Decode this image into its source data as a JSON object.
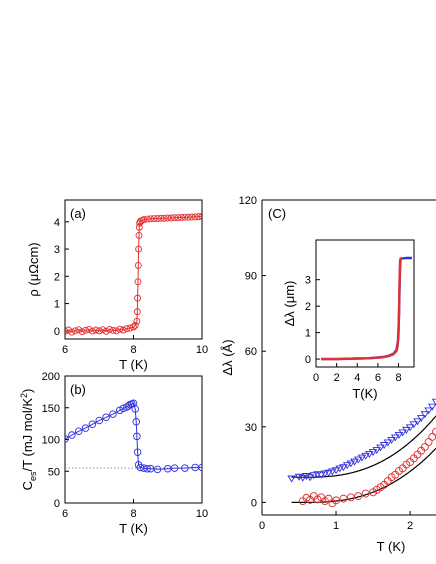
{
  "chart_data": [
    {
      "id": "a",
      "type": "scatter",
      "panel_label": "(a)",
      "xlabel": "T (K)",
      "ylabel": "ρ (μΩcm)",
      "xlim": [
        6,
        10
      ],
      "ylim": [
        -0.3,
        4.8
      ],
      "xticks": [
        "6",
        "8",
        "10"
      ],
      "yticks": [
        "0",
        "1",
        "2",
        "3",
        "4"
      ],
      "marker_color": "#e03030",
      "line_color": "#e03030",
      "x": [
        6.0,
        6.1,
        6.2,
        6.3,
        6.4,
        6.5,
        6.6,
        6.7,
        6.8,
        6.9,
        7.0,
        7.1,
        7.2,
        7.3,
        7.4,
        7.5,
        7.6,
        7.7,
        7.8,
        7.9,
        8.0,
        8.05,
        8.1,
        8.11,
        8.12,
        8.13,
        8.14,
        8.15,
        8.16,
        8.17,
        8.18,
        8.2,
        8.25,
        8.3,
        8.4,
        8.5,
        8.6,
        8.7,
        8.8,
        8.9,
        9.0,
        9.1,
        9.2,
        9.3,
        9.4,
        9.5,
        9.6,
        9.7,
        9.8,
        9.9,
        10.0
      ],
      "y": [
        -0.02,
        0.03,
        -0.05,
        0.0,
        0.04,
        -0.03,
        0.02,
        0.05,
        -0.01,
        0.03,
        0.0,
        0.04,
        -0.02,
        0.05,
        0.02,
        0.0,
        0.06,
        0.03,
        0.08,
        0.1,
        0.14,
        0.2,
        0.35,
        0.7,
        1.2,
        1.8,
        2.4,
        3.0,
        3.5,
        3.8,
        3.95,
        4.02,
        4.05,
        4.08,
        4.1,
        4.11,
        4.12,
        4.12,
        4.13,
        4.13,
        4.14,
        4.14,
        4.15,
        4.15,
        4.16,
        4.17,
        4.17,
        4.18,
        4.18,
        4.19,
        4.2
      ]
    },
    {
      "id": "b",
      "type": "scatter",
      "panel_label": "(b)",
      "xlabel": "T (K)",
      "ylabel_main": "C",
      "ylabel_sub": "es",
      "ylabel_rest": "/T (mJ mol/K",
      "ylabel_sup": "2",
      "ylabel_end": ")",
      "xlim": [
        6,
        10
      ],
      "ylim": [
        0,
        200
      ],
      "xticks": [
        "6",
        "8",
        "10"
      ],
      "yticks": [
        "0",
        "50",
        "100",
        "150",
        "200"
      ],
      "marker_color": "#3030e0",
      "line_color": "#3030e0",
      "reference_line_y": 55,
      "x": [
        6.0,
        6.2,
        6.4,
        6.6,
        6.8,
        7.0,
        7.2,
        7.4,
        7.6,
        7.7,
        7.8,
        7.85,
        7.9,
        7.95,
        8.0,
        8.05,
        8.08,
        8.1,
        8.12,
        8.15,
        8.2,
        8.3,
        8.4,
        8.5,
        8.7,
        9.0,
        9.2,
        9.5,
        9.8,
        10.0
      ],
      "y": [
        101,
        107,
        113,
        118,
        124,
        130,
        135,
        140,
        146,
        149,
        151,
        153,
        155,
        156,
        157,
        148,
        128,
        105,
        80,
        60,
        56,
        55,
        54,
        54,
        53,
        54,
        55,
        55,
        56,
        56
      ]
    },
    {
      "id": "c",
      "type": "scatter",
      "panel_label": "(C)",
      "xlabel": "T (K)",
      "ylabel": "Δλ (Å)",
      "xlim": [
        0,
        2.35
      ],
      "ylim": [
        -5,
        120
      ],
      "xticks": [
        "0",
        "1",
        "2"
      ],
      "yticks": [
        "0",
        "30",
        "60",
        "90",
        "120"
      ],
      "series": [
        {
          "marker": "triangle",
          "color": "#3030e0",
          "x": [
            0.4,
            0.5,
            0.55,
            0.6,
            0.65,
            0.7,
            0.75,
            0.8,
            0.85,
            0.9,
            0.95,
            1.0,
            1.05,
            1.1,
            1.15,
            1.2,
            1.25,
            1.3,
            1.35,
            1.4,
            1.45,
            1.5,
            1.55,
            1.6,
            1.65,
            1.7,
            1.75,
            1.8,
            1.85,
            1.9,
            1.95,
            2.0,
            2.05,
            2.1,
            2.15,
            2.2,
            2.25,
            2.3,
            2.35
          ],
          "y": [
            9.5,
            10.2,
            9.8,
            10.5,
            10.0,
            10.8,
            11.2,
            11.0,
            11.5,
            11.8,
            12.3,
            12.8,
            13.5,
            14.0,
            14.8,
            15.5,
            16.2,
            17.0,
            17.8,
            18.5,
            19.2,
            20.0,
            20.8,
            21.8,
            22.8,
            23.8,
            24.8,
            25.8,
            26.8,
            27.8,
            28.8,
            29.8,
            31.0,
            32.2,
            33.5,
            35.0,
            36.5,
            38.0,
            40.0
          ]
        },
        {
          "marker": "circle",
          "color": "#e03030",
          "x": [
            0.55,
            0.6,
            0.65,
            0.7,
            0.75,
            0.8,
            0.85,
            0.9,
            0.95,
            1.0,
            1.1,
            1.2,
            1.3,
            1.4,
            1.5,
            1.55,
            1.6,
            1.65,
            1.7,
            1.75,
            1.8,
            1.85,
            1.9,
            1.95,
            2.0,
            2.05,
            2.1,
            2.15,
            2.2,
            2.25,
            2.3,
            2.35
          ],
          "y": [
            0.5,
            1.8,
            1.0,
            2.5,
            1.2,
            2.0,
            0.5,
            1.5,
            -0.3,
            0.8,
            1.5,
            2.0,
            2.5,
            3.5,
            4.0,
            5.0,
            6.0,
            7.0,
            8.5,
            10.0,
            11.0,
            12.5,
            13.5,
            15.0,
            16.0,
            17.5,
            19.0,
            20.5,
            22.0,
            24.0,
            26.0,
            28.0
          ]
        }
      ],
      "fits": [
        {
          "color": "#000000",
          "offset": 10,
          "coef": 6.0,
          "power": 2.5,
          "t0": 0.6
        },
        {
          "color": "#000000",
          "offset": 0,
          "coef": 5.3,
          "power": 2.5,
          "t0": 0.6
        }
      ]
    },
    {
      "id": "c-inset",
      "type": "line",
      "xlabel": "T(K)",
      "ylabel": "Δλ (μm)",
      "xlim": [
        0,
        9.5
      ],
      "ylim": [
        -0.3,
        4.5
      ],
      "xticks": [
        "0",
        "2",
        "4",
        "6",
        "8"
      ],
      "yticks": [
        "0",
        "1",
        "2",
        "3"
      ],
      "series": [
        {
          "color": "#3030e0",
          "x": [
            0.5,
            1,
            2,
            3,
            4,
            5,
            6,
            6.5,
            7,
            7.5,
            7.8,
            7.95,
            8.05,
            8.1,
            8.15,
            8.2,
            8.3,
            8.5,
            8.7,
            9.0,
            9.3
          ],
          "y": [
            0.0,
            0.0,
            0.0,
            0.01,
            0.02,
            0.03,
            0.06,
            0.08,
            0.12,
            0.2,
            0.35,
            0.7,
            1.6,
            2.8,
            3.5,
            3.78,
            3.8,
            3.81,
            3.82,
            3.82,
            3.82
          ]
        },
        {
          "color": "#e03030",
          "x": [
            0.5,
            1,
            2,
            3,
            4,
            5,
            6,
            6.5,
            7,
            7.5,
            7.8,
            7.9,
            8.0,
            8.05,
            8.1,
            8.15,
            8.2,
            8.3,
            8.4
          ],
          "y": [
            0.0,
            0.0,
            0.0,
            0.01,
            0.02,
            0.03,
            0.05,
            0.07,
            0.11,
            0.18,
            0.3,
            0.45,
            0.9,
            1.8,
            3.0,
            3.7,
            3.8,
            3.8,
            3.8
          ]
        }
      ]
    }
  ]
}
